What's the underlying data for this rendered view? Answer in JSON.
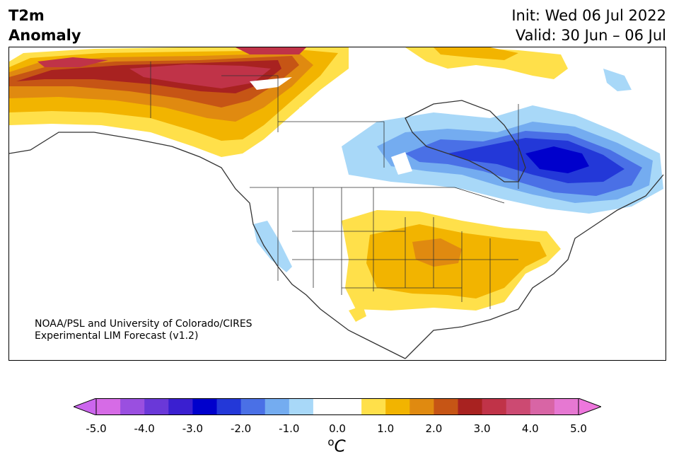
{
  "title": {
    "line1": "T2m",
    "line2": "Anomaly"
  },
  "init": {
    "line1": "Init: Wed 06 Jul 2022",
    "line2": "Valid: 30 Jun – 06 Jul"
  },
  "credit": {
    "line1": "NOAA/PSL and University of Colorado/CIRES",
    "line2": "Experimental LIM Forecast (v1.2)"
  },
  "colorbar": {
    "ticks": [
      "-5.0",
      "-4.0",
      "-3.0",
      "-2.0",
      "-1.0",
      "0.0",
      "1.0",
      "2.0",
      "3.0",
      "4.0",
      "5.0"
    ],
    "unit_sup": "o",
    "unit": "C",
    "colors": [
      "#d66be6",
      "#9a4fe0",
      "#6a38d8",
      "#3a1fd0",
      "#0000cc",
      "#2338d8",
      "#4a70e6",
      "#74acf0",
      "#a8d8f8",
      "#ffffff",
      "#ffffff",
      "#ffe04a",
      "#f2b400",
      "#e08a10",
      "#c65515",
      "#a82220",
      "#c03348",
      "#cc4a72",
      "#d865a5",
      "#e678d2"
    ],
    "under_color": "#cc66ee",
    "over_color": "#ee77dd"
  },
  "colors": {
    "warm_1": "#ffe04a",
    "warm_2": "#f2b400",
    "warm_3": "#e08a10",
    "warm_4": "#c65515",
    "warm_5": "#a82220",
    "warm_6": "#c03348",
    "cool_1": "#a8d8f8",
    "cool_2": "#74acf0",
    "cool_3": "#4a70e6",
    "cool_4": "#2338d8",
    "cool_5": "#0000cc",
    "coast": "#333333"
  }
}
